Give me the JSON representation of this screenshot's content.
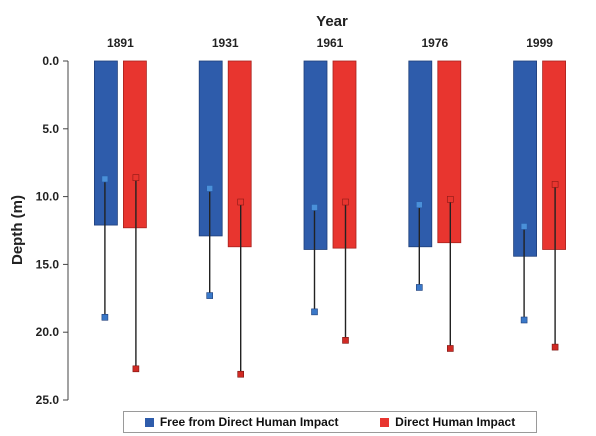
{
  "chart_data": {
    "type": "bar",
    "title": "Year",
    "ylabel": "Depth (m)",
    "xlabel": "",
    "categories": [
      "1891",
      "1931",
      "1961",
      "1976",
      "1999"
    ],
    "y_axis": {
      "min": 0,
      "max": 25,
      "inverted": true,
      "ticks": [
        "0.0",
        "5.0",
        "10.0",
        "15.0",
        "20.0",
        "25.0"
      ],
      "tick_values": [
        0,
        5,
        10,
        15,
        20,
        25
      ]
    },
    "series": [
      {
        "name": "Free from Direct Human Impact",
        "color": "#2e5cab",
        "values": [
          12.1,
          12.9,
          13.9,
          13.7,
          14.4
        ],
        "whisker_low": [
          8.7,
          9.4,
          10.8,
          10.6,
          12.2
        ],
        "whisker_high": [
          18.9,
          17.3,
          18.5,
          16.7,
          19.1
        ]
      },
      {
        "name": "Direct Human Impact",
        "color": "#e8352f",
        "values": [
          12.3,
          13.7,
          13.8,
          13.4,
          13.9
        ],
        "whisker_low": [
          8.6,
          10.4,
          10.4,
          10.2,
          9.1
        ],
        "whisker_high": [
          22.7,
          23.1,
          20.6,
          21.2,
          21.1
        ]
      }
    ],
    "grid": false,
    "legend_position": "bottom"
  }
}
